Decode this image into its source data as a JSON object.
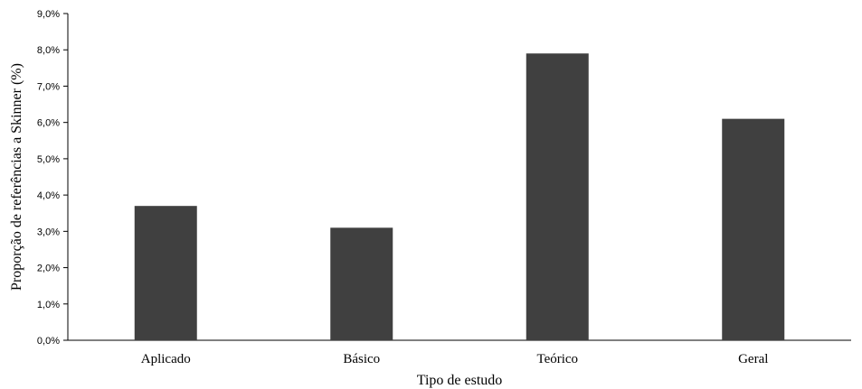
{
  "chart_data": {
    "type": "bar",
    "categories": [
      "Aplicado",
      "Básico",
      "Teórico",
      "Geral"
    ],
    "values": [
      3.7,
      3.1,
      7.9,
      6.1
    ],
    "title": "",
    "xlabel": "Tipo de estudo",
    "ylabel": "Proporção de referências a Skinner (%)",
    "ylim": [
      0,
      9
    ],
    "y_ticks": [
      "0,0%",
      "1,0%",
      "2,0%",
      "3,0%",
      "4,0%",
      "5,0%",
      "6,0%",
      "7,0%",
      "8,0%",
      "9,0%"
    ],
    "bar_color": "#404040",
    "grid": false,
    "legend": "none"
  }
}
